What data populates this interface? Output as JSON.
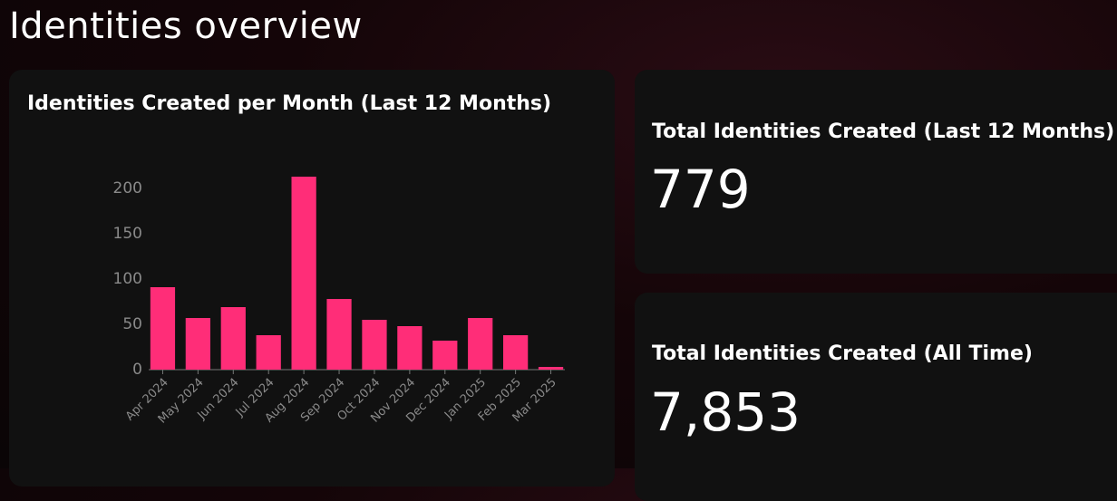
{
  "page": {
    "title": "Identities overview"
  },
  "cards": [
    {
      "title": "Total Identities Created (Last 12 Months)",
      "value": "779"
    },
    {
      "title": "Total Identities Created (All Time)",
      "value": "7,853"
    }
  ],
  "chart_data": {
    "type": "bar",
    "title": "Identities Created per Month (Last 12 Months)",
    "categories": [
      "Apr 2024",
      "May 2024",
      "Jun 2024",
      "Jul 2024",
      "Aug 2024",
      "Sep 2024",
      "Oct 2024",
      "Nov 2024",
      "Dec 2024",
      "Jan 2025",
      "Feb 2025",
      "Mar 2025"
    ],
    "values": [
      91,
      57,
      69,
      38,
      213,
      78,
      55,
      48,
      32,
      57,
      38,
      3
    ],
    "color": "#ff2d78",
    "ylim": [
      0,
      215
    ],
    "yticks": [
      0,
      50,
      100,
      150,
      200
    ],
    "grid": false
  }
}
